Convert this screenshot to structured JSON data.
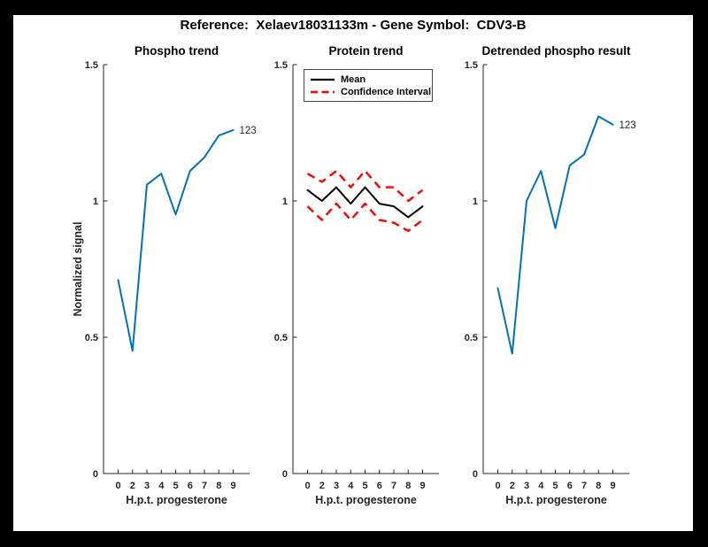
{
  "figure": {
    "title": "Reference:  Xelaev18031133m - Gene Symbol:  CDV3-B",
    "frame_color": "#000000",
    "canvas_color": "#ffffff",
    "axis_text_color": "#262626"
  },
  "chart_data": [
    {
      "type": "line",
      "title": "Phospho trend",
      "xlabel": "H.p.t. progesterone",
      "ylabel": "Normalized signal",
      "categories": [
        "0",
        "2",
        "3",
        "4",
        "5",
        "6",
        "7",
        "8",
        "9"
      ],
      "ylim": [
        0,
        1.5
      ],
      "yticks": [
        0,
        0.5,
        1,
        1.5
      ],
      "grid": false,
      "end_label": "123",
      "series": [
        {
          "color": "#0072bd",
          "style": "solid",
          "values": [
            0.71,
            0.45,
            1.06,
            1.1,
            0.95,
            1.11,
            1.16,
            1.24,
            1.26
          ]
        }
      ]
    },
    {
      "type": "line",
      "title": "Protein trend",
      "xlabel": "H.p.t. progesterone",
      "categories": [
        "0",
        "2",
        "3",
        "4",
        "5",
        "6",
        "7",
        "8",
        "9"
      ],
      "ylim": [
        0,
        1.5
      ],
      "yticks": [
        0,
        0.5,
        1,
        1.5
      ],
      "grid": false,
      "legend": {
        "position": "top-left",
        "entries": [
          "Mean",
          "Confidence Interval"
        ]
      },
      "series": [
        {
          "name": "Mean",
          "color": "#000000",
          "style": "solid",
          "values": [
            1.04,
            1.0,
            1.05,
            0.99,
            1.05,
            0.99,
            0.98,
            0.94,
            0.98
          ]
        },
        {
          "name": "Confidence Interval",
          "color": "#ff0000",
          "style": "dashed",
          "upper": [
            1.1,
            1.07,
            1.11,
            1.05,
            1.11,
            1.05,
            1.05,
            1.0,
            1.04
          ],
          "lower": [
            0.98,
            0.93,
            0.99,
            0.93,
            0.99,
            0.93,
            0.92,
            0.89,
            0.93
          ]
        }
      ]
    },
    {
      "type": "line",
      "title": "Detrended phospho result",
      "xlabel": "H.p.t. progesterone",
      "categories": [
        "0",
        "2",
        "3",
        "4",
        "5",
        "6",
        "7",
        "8",
        "9"
      ],
      "ylim": [
        0,
        1.5
      ],
      "yticks": [
        0,
        0.5,
        1,
        1.5
      ],
      "grid": false,
      "end_label": "123",
      "series": [
        {
          "color": "#0072bd",
          "style": "solid",
          "values": [
            0.68,
            0.44,
            1.0,
            1.11,
            0.9,
            1.13,
            1.17,
            1.31,
            1.28
          ]
        }
      ]
    }
  ]
}
